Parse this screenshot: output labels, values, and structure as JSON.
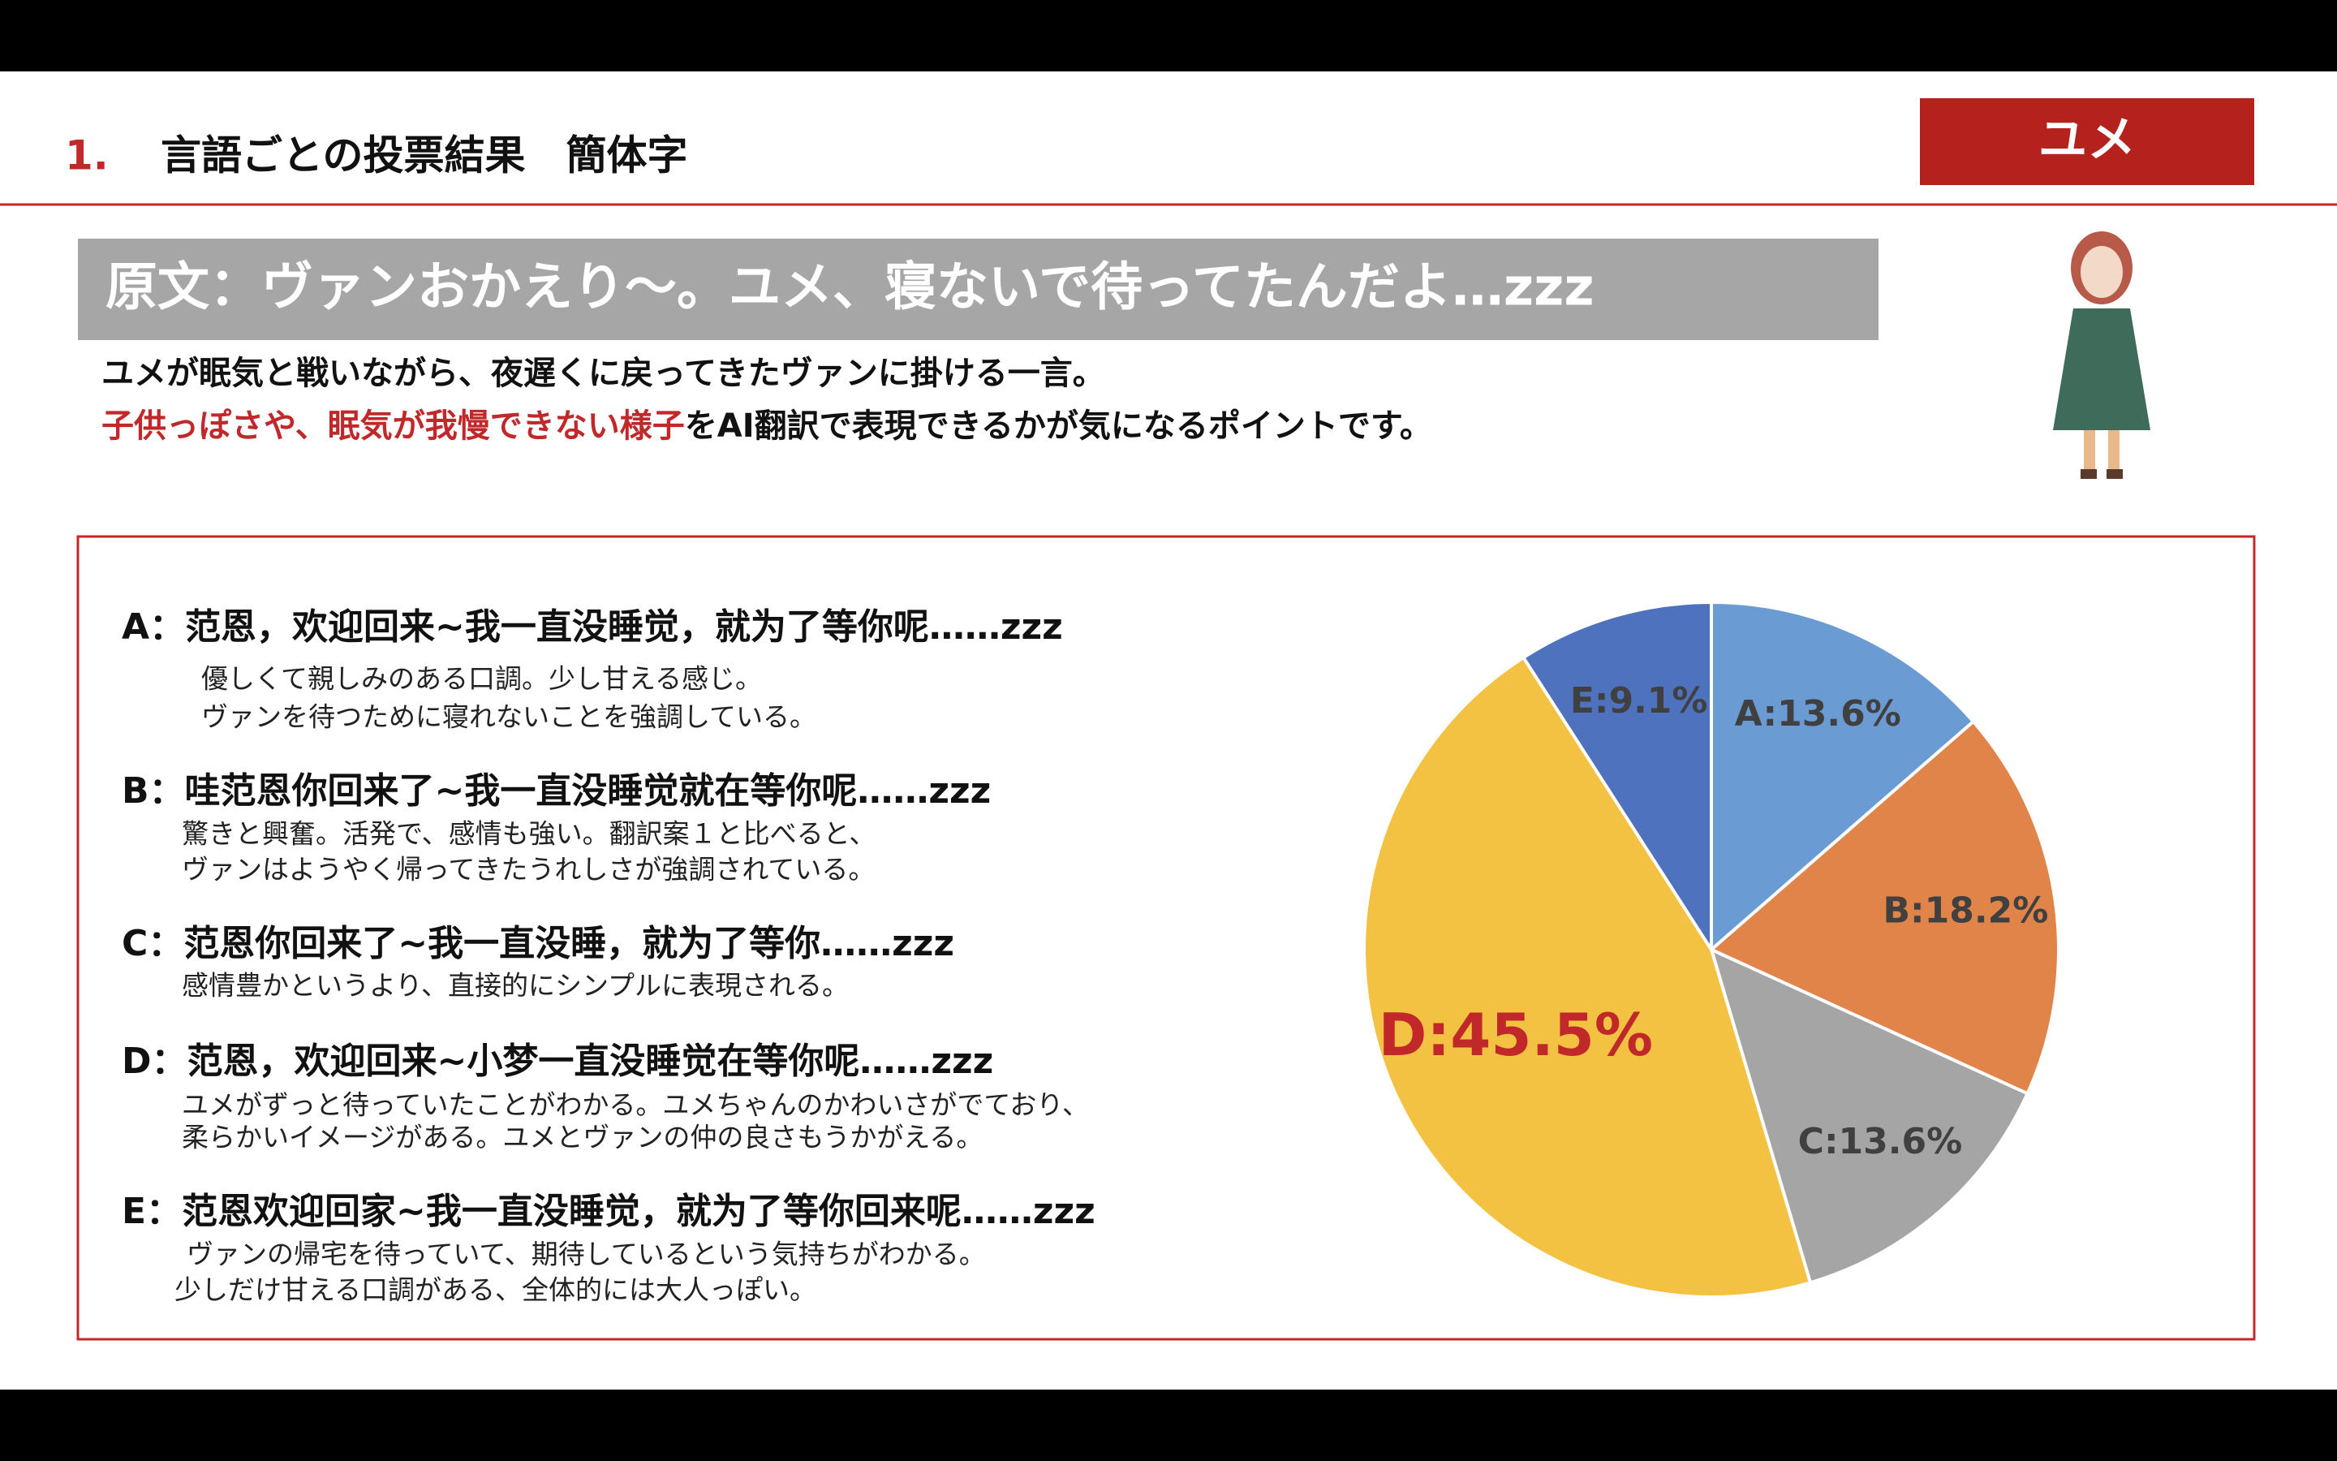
{
  "header": {
    "number": "1.",
    "title": "言語ごとの投票結果　簡体字",
    "badge": "ユメ"
  },
  "original": "原文：ヴァンおかえり～。ユメ、寝ないで待ってたんだよ…zzz",
  "description": {
    "line1": "ユメが眠気と戦いながら、夜遅くに戻ってきたヴァンに掛ける一言。",
    "line2_highlight": "子供っぽさや、眠気が我慢できない様子",
    "line2_rest": "をAI翻訳で表現できるかが気になるポイントです。"
  },
  "items": [
    {
      "heading": "A：范恩，欢迎回来~我一直没睡觉，就为了等你呢……zzz",
      "notes": [
        "優しくて親しみのある口調。少し甘える感じ。",
        "ヴァンを待つために寝れないことを強調している。"
      ]
    },
    {
      "heading": "B：哇范恩你回来了~我一直没睡觉就在等你呢……zzz",
      "notes": [
        "驚きと興奮。活発で、感情も強い。翻訳案１と比べると、",
        "ヴァンはようやく帰ってきたうれしさが強調されている。"
      ]
    },
    {
      "heading": "C：范恩你回来了~我一直没睡，就为了等你……zzz",
      "notes": [
        "感情豊かというより、直接的にシンプルに表現される。"
      ]
    },
    {
      "heading": "D：范恩，欢迎回来~小梦一直没睡觉在等你呢……zzz",
      "notes": [
        "ユメがずっと待っていたことがわかる。ユメちゃんのかわいさがでており、",
        "柔らかいイメージがある。ユメとヴァンの仲の良さもうかがえる。"
      ]
    },
    {
      "heading": "E：范恩欢迎回家~我一直没睡觉，就为了等你回来呢……zzz",
      "notes": [
        "ヴァンの帰宅を待っていて、期待しているという気持ちがわかる。",
        "少しだけ甘える口調がある、全体的には大人っぽい。"
      ]
    }
  ],
  "chart_data": {
    "type": "pie",
    "values": [
      13.6,
      18.2,
      13.6,
      45.5,
      9.1
    ],
    "value_labels": [
      "A:13.6%",
      "B:18.2%",
      "C:13.6%",
      "D:45.5%",
      "E:9.1%"
    ],
    "colors": [
      "#6a9bd2",
      "#e0844a",
      "#a5a5a5",
      "#f4c242",
      "#4f72be"
    ],
    "highlight_index": 3,
    "highlight_color": "#c0282a"
  }
}
